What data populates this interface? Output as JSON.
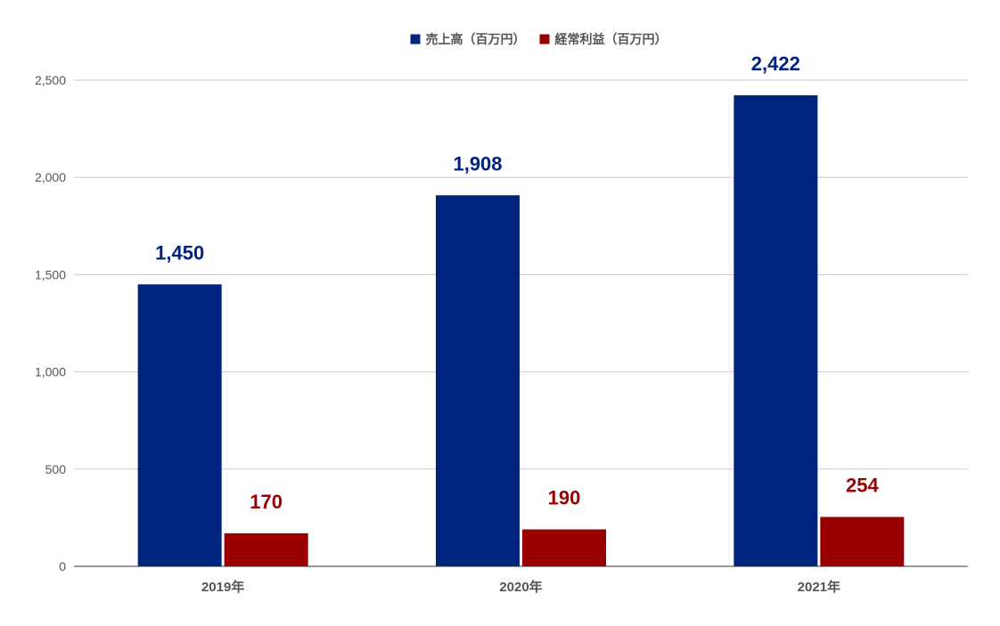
{
  "chart_data": {
    "type": "bar",
    "categories": [
      "2019年",
      "2020年",
      "2021年"
    ],
    "series": [
      {
        "name": "売上高（百万円）",
        "values": [
          1450,
          1908,
          2422
        ],
        "labels": [
          "1,450",
          "1,908",
          "2,422"
        ],
        "color": "#00247d"
      },
      {
        "name": "経常利益（百万円）",
        "values": [
          170,
          190,
          254
        ],
        "labels": [
          "170",
          "190",
          "254"
        ],
        "color": "#990000"
      }
    ],
    "yticks": [
      "0",
      "500",
      "1,000",
      "1,500",
      "2,000",
      "2,500"
    ],
    "ytick_values": [
      0,
      500,
      1000,
      1500,
      2000,
      2500
    ],
    "ylim": [
      0,
      2500
    ],
    "grid": true,
    "legend_position": "top-center",
    "axis_color": "#333333",
    "grid_color": "#cccccc"
  }
}
